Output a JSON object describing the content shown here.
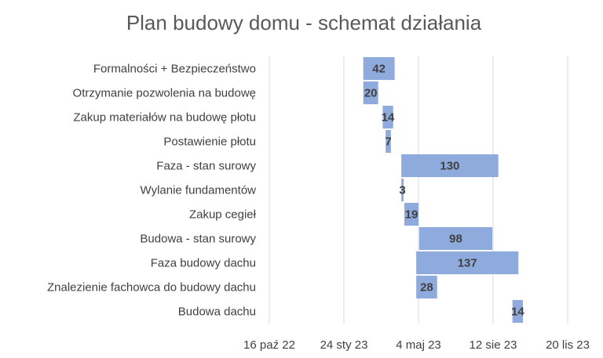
{
  "chart_data": {
    "type": "bar",
    "orientation": "horizontal",
    "stacked_gantt": true,
    "title": "Plan budowy domu - schemat działania",
    "xlabel": "",
    "ylabel": "",
    "grid": true,
    "legend": "none",
    "x_ticks": [
      "2022-10-16",
      "2023-01-24",
      "2023-05-04",
      "2023-08-12",
      "2023-11-20"
    ],
    "x_tick_labels": [
      "16 paź 22",
      "24 sty 23",
      "4 maj 23",
      "12 sie 23",
      "20 lis 23"
    ],
    "xlim": [
      "2022-10-16",
      "2023-11-20"
    ],
    "categories": [
      "Formalności + Bezpieczeństwo",
      "Otrzymanie pozwolenia na budowę",
      "Zakup materiałów na budowę płotu",
      "Postawienie płotu",
      "Faza - stan surowy",
      "Wylanie fundamentów",
      "Zakup cegieł",
      "Budowa - stan surowy",
      "Faza budowy dachu",
      "Znalezienie fachowca do budowy dachu",
      "Budowa dachu"
    ],
    "start": [
      "2023-02-19",
      "2023-02-19",
      "2023-03-17",
      "2023-03-21",
      "2023-04-11",
      "2023-04-11",
      "2023-04-15",
      "2023-05-05",
      "2023-05-01",
      "2023-05-01",
      "2023-09-07"
    ],
    "values": [
      42,
      20,
      14,
      7,
      130,
      3,
      19,
      98,
      137,
      28,
      14
    ],
    "colors": {
      "bar": "#8faadc",
      "grid": "#d9d9d9",
      "text": "#404040",
      "title": "#595959"
    }
  }
}
